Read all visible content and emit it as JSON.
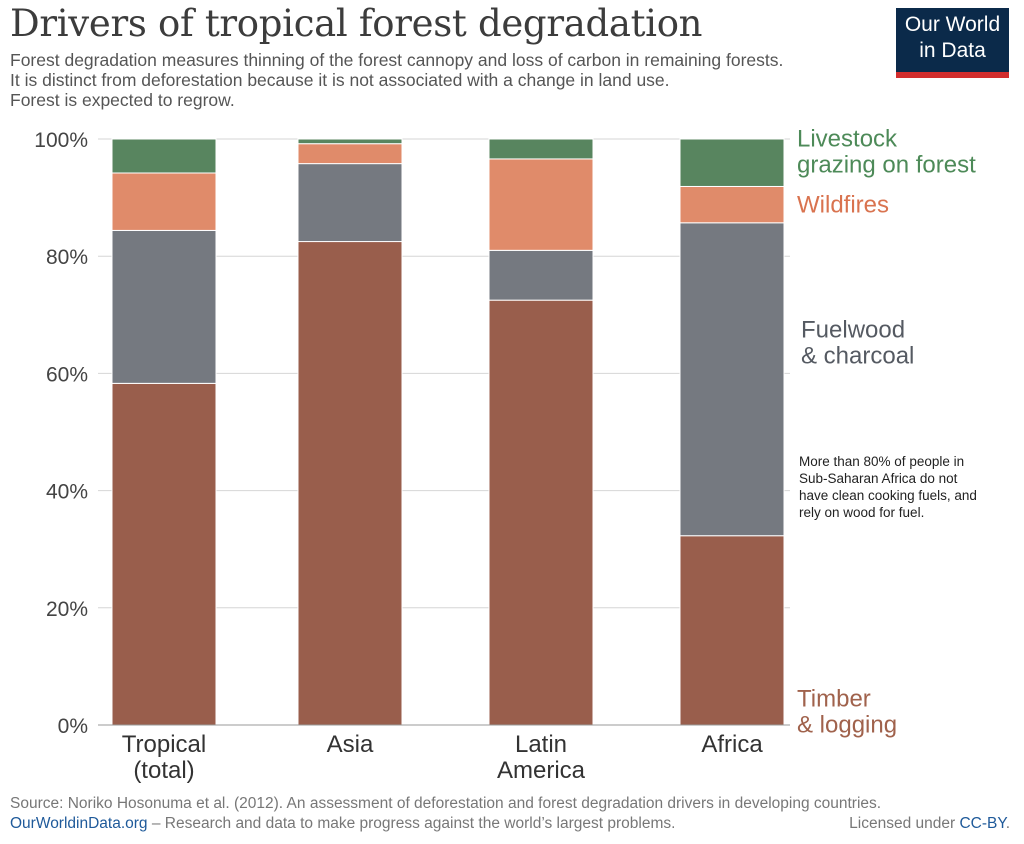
{
  "header": {
    "title": "Drivers of tropical forest degradation",
    "subtitle_lines": [
      "Forest degradation measures thinning of the forest cannopy and loss of carbon in remaining forests.",
      "It is distinct from deforestation because it is not associated with a change in land use.",
      "Forest is expected to regrow."
    ]
  },
  "logo": {
    "line1": "Our World",
    "line2": "in Data"
  },
  "chart_data": {
    "type": "bar",
    "stacked": true,
    "title": "Drivers of tropical forest degradation",
    "categories": [
      {
        "lines": [
          "Tropical",
          "(total)"
        ]
      },
      {
        "lines": [
          "Asia"
        ]
      },
      {
        "lines": [
          "Latin",
          "America"
        ]
      },
      {
        "lines": [
          "Africa"
        ]
      }
    ],
    "series": [
      {
        "name": "Timber & logging",
        "label_lines": [
          "Timber",
          "& logging"
        ],
        "color": "#995e4c",
        "values": [
          58.3,
          82.5,
          72.5,
          32.3
        ]
      },
      {
        "name": "Fuelwood & charcoal",
        "label_lines": [
          "Fuelwood",
          "& charcoal"
        ],
        "color": "#757980",
        "values": [
          26.1,
          13.3,
          8.5,
          53.4
        ]
      },
      {
        "name": "Wildfires",
        "label_lines": [
          "Wildfires"
        ],
        "color": "#e08b6a",
        "values": [
          9.8,
          3.4,
          15.6,
          6.2
        ]
      },
      {
        "name": "Livestock grazing on forest",
        "label_lines": [
          "Livestock",
          "grazing on forest"
        ],
        "color": "#58855f",
        "values": [
          5.8,
          0.8,
          3.4,
          8.1
        ]
      }
    ],
    "label_colors": [
      "#a0624c",
      "#555a62",
      "#d9734f",
      "#4d8a58"
    ],
    "y_ticks": [
      0,
      20,
      40,
      60,
      80,
      100
    ],
    "y_tick_suffix": "%",
    "ylim": [
      0,
      100
    ],
    "grid": true,
    "annotation_lines": [
      "More than 80% of people in",
      "Sub-Saharan Africa do not",
      "have clean cooking fuels, and",
      "rely on wood for fuel."
    ]
  },
  "footer": {
    "source": "Source: Noriko Hosonuma et al. (2012). An assessment of deforestation and forest degradation drivers in developing countries.",
    "site": "OurWorldinData.org",
    "tagline": " – Research and data to make progress against the world’s largest problems.",
    "license_prefix": "Licensed under ",
    "license": "CC-BY",
    "license_suffix": "."
  }
}
